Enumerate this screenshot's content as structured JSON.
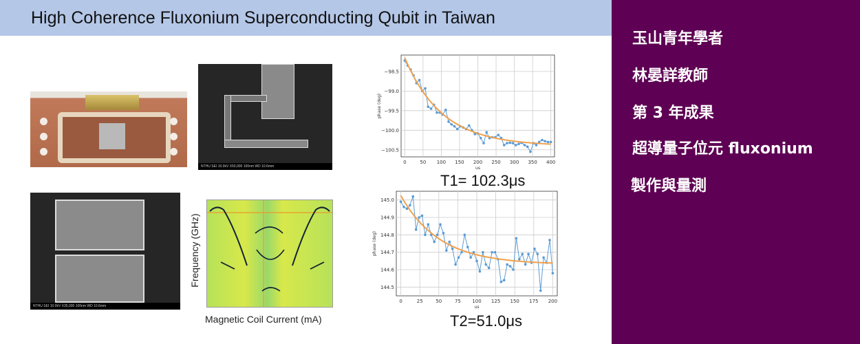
{
  "title": "High Coherence Fluxonium Superconducting Qubit in Taiwan",
  "colors": {
    "title_bar": "#b4c7e7",
    "side_panel": "#5e0053",
    "data_series": "#5b9bd5",
    "fit_curve": "#f0a04b"
  },
  "side_panel": {
    "lines": [
      "玉山青年學者",
      "林晏詳教師",
      "第 3 年成果",
      "超導量子位元 fluxonium",
      "製作與量測"
    ]
  },
  "images": {
    "sem1_caption": "NTHU      SEI   10.0kV   X50,000   100nm   WD 10.6mm",
    "sem2_caption": "NTHU      SEI   10.0kV   X35,000   100nm   WD 10.6mm",
    "spectroscopy": {
      "ylabel": "Frequency (GHz)",
      "xlabel": "Magnetic Coil Current  (mA)"
    }
  },
  "chart_data": [
    {
      "type": "line",
      "caption": "T1= 102.3μs",
      "xlabel": "us",
      "ylabel": "phase (deg)",
      "xlim": [
        -10,
        410
      ],
      "ylim": [
        -100.68,
        -98.08
      ],
      "xticks": [
        0,
        50,
        100,
        150,
        200,
        250,
        300,
        350,
        400
      ],
      "yticks": [
        -98.5,
        -99.0,
        -99.5,
        -100.0,
        -100.5
      ],
      "ytick_labels": [
        "−98.5",
        "−99.0",
        "−99.5",
        "−100.0",
        "−100.5"
      ],
      "grid": true,
      "series": [
        {
          "kind": "data",
          "x": [
            0,
            8,
            16,
            24,
            32,
            40,
            48,
            56,
            64,
            72,
            80,
            88,
            96,
            104,
            112,
            120,
            128,
            136,
            144,
            152,
            160,
            168,
            176,
            184,
            192,
            200,
            208,
            216,
            224,
            232,
            240,
            248,
            256,
            264,
            272,
            280,
            288,
            296,
            304,
            312,
            320,
            328,
            336,
            344,
            352,
            360,
            368,
            376,
            384,
            392,
            400
          ],
          "y": [
            -98.22,
            -98.35,
            -98.45,
            -98.6,
            -98.8,
            -98.72,
            -99.0,
            -98.93,
            -99.4,
            -99.45,
            -99.35,
            -99.55,
            -99.55,
            -99.6,
            -99.48,
            -99.78,
            -99.85,
            -99.9,
            -99.97,
            -99.9,
            -99.93,
            -99.97,
            -99.88,
            -100.0,
            -100.1,
            -100.08,
            -100.2,
            -100.33,
            -100.05,
            -100.2,
            -100.18,
            -100.18,
            -100.12,
            -100.2,
            -100.38,
            -100.33,
            -100.32,
            -100.33,
            -100.38,
            -100.35,
            -100.32,
            -100.38,
            -100.42,
            -100.55,
            -100.33,
            -100.38,
            -100.3,
            -100.25,
            -100.28,
            -100.3,
            -100.3
          ]
        },
        {
          "kind": "fit",
          "model": "exponential decay",
          "offset": -100.4,
          "amplitude": 2.25,
          "tau": 102.3,
          "x_range": [
            0,
            400
          ]
        }
      ]
    },
    {
      "type": "line",
      "caption": "T2=51.0μs",
      "xlabel": "us",
      "ylabel": "phase (deg)",
      "xlim": [
        -6,
        206
      ],
      "ylim": [
        144.45,
        145.05
      ],
      "xticks": [
        0,
        25,
        50,
        75,
        100,
        125,
        150,
        175,
        200
      ],
      "yticks": [
        145.0,
        144.9,
        144.8,
        144.7,
        144.6,
        144.5
      ],
      "ytick_labels": [
        "145.0",
        "144.9",
        "144.8",
        "144.7",
        "144.6",
        "144.5"
      ],
      "grid": true,
      "series": [
        {
          "kind": "data",
          "x": [
            0,
            4,
            8,
            12,
            16,
            20,
            24,
            28,
            32,
            36,
            40,
            44,
            48,
            52,
            56,
            60,
            64,
            68,
            72,
            76,
            80,
            84,
            88,
            92,
            96,
            100,
            104,
            108,
            112,
            116,
            120,
            124,
            128,
            132,
            136,
            140,
            144,
            148,
            152,
            156,
            160,
            164,
            168,
            172,
            176,
            180,
            184,
            188,
            192,
            196,
            200
          ],
          "y": [
            144.99,
            144.96,
            144.95,
            144.97,
            145.02,
            144.83,
            144.9,
            144.91,
            144.8,
            144.86,
            144.8,
            144.76,
            144.8,
            144.86,
            144.81,
            144.71,
            144.76,
            144.72,
            144.63,
            144.67,
            144.7,
            144.8,
            144.73,
            144.67,
            144.7,
            144.65,
            144.59,
            144.7,
            144.63,
            144.61,
            144.7,
            144.7,
            144.66,
            144.53,
            144.54,
            144.63,
            144.62,
            144.6,
            144.78,
            144.66,
            144.69,
            144.63,
            144.69,
            144.64,
            144.72,
            144.69,
            144.48,
            144.67,
            144.64,
            144.77,
            144.58
          ]
        },
        {
          "kind": "fit",
          "model": "exponential decay",
          "offset": 144.63,
          "amplitude": 0.395,
          "tau": 51.0,
          "x_range": [
            0,
            200
          ]
        }
      ]
    }
  ]
}
